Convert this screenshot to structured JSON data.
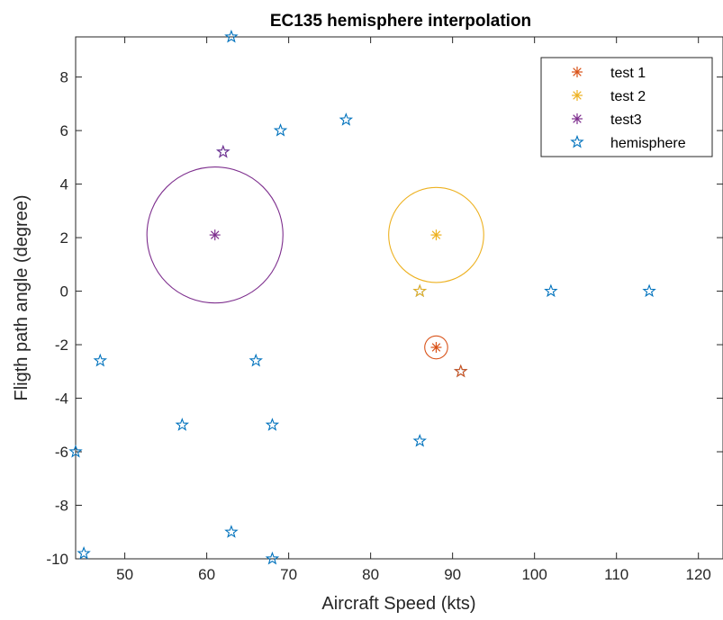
{
  "chart_data": {
    "type": "scatter",
    "title": "EC135 hemisphere interpolation",
    "xlabel": "Aircraft Speed (kts)",
    "ylabel": "Fligth path angle (degree)",
    "xlim": [
      44,
      123
    ],
    "ylim": [
      -10,
      9.5
    ],
    "xticks": [
      50,
      60,
      70,
      80,
      90,
      100,
      110,
      120
    ],
    "yticks": [
      -10,
      -8,
      -6,
      -4,
      -2,
      0,
      2,
      4,
      6,
      8
    ],
    "grid": false,
    "legend_position": "top-right",
    "series": [
      {
        "name": "test 1",
        "marker": "asterisk",
        "color": "#D95319",
        "points": [
          [
            88,
            -2.1
          ]
        ],
        "circle": {
          "center": [
            88,
            -2.1
          ],
          "radius_data": 1.4
        }
      },
      {
        "name": "test 2",
        "marker": "asterisk",
        "color": "#EDB120",
        "points": [
          [
            88,
            2.1
          ]
        ],
        "circle": {
          "center": [
            88,
            2.1
          ],
          "radius_data": 5.8
        }
      },
      {
        "name": "test3",
        "marker": "asterisk",
        "color": "#7E2F8E",
        "points": [
          [
            61,
            2.1
          ]
        ],
        "circle": {
          "center": [
            61,
            2.1
          ],
          "radius_data": 8.3
        }
      },
      {
        "name": "hemisphere",
        "marker": "pentagram",
        "color": "#0072BD",
        "points": [
          [
            63,
            9.5
          ],
          [
            62,
            5.2
          ],
          [
            69,
            6.0
          ],
          [
            77,
            6.4
          ],
          [
            86,
            0
          ],
          [
            102,
            0
          ],
          [
            114,
            0
          ],
          [
            47,
            -2.6
          ],
          [
            66,
            -2.6
          ],
          [
            91,
            -3.0
          ],
          [
            57,
            -5.0
          ],
          [
            68,
            -5.0
          ],
          [
            44,
            -6.0
          ],
          [
            86,
            -5.6
          ],
          [
            63,
            -9.0
          ],
          [
            45,
            -9.8
          ],
          [
            68,
            -10.0
          ]
        ]
      }
    ],
    "highlighted_points": [
      {
        "point": [
          91,
          -3.0
        ],
        "color": "#D95319"
      },
      {
        "point": [
          86,
          0
        ],
        "color": "#EDB120"
      },
      {
        "point": [
          62,
          5.2
        ],
        "color": "#7E2F8E"
      }
    ]
  }
}
